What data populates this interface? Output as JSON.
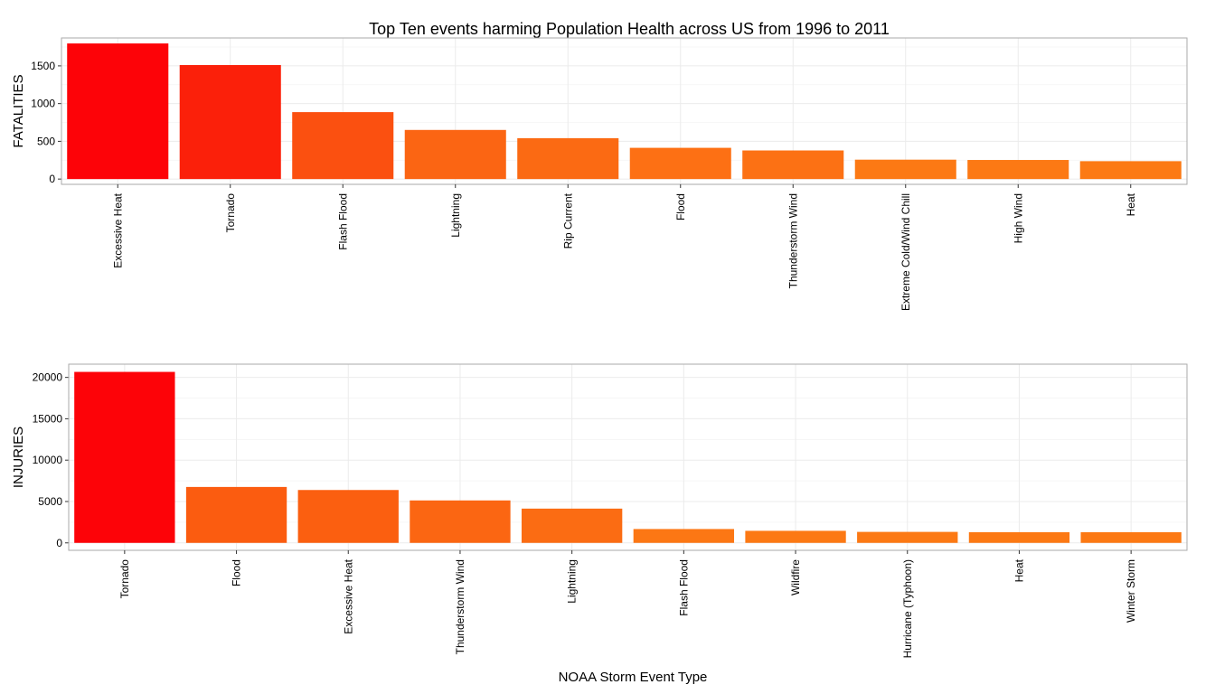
{
  "chart_data": {
    "title": "Top Ten events harming Population Health across US from 1996 to 2011",
    "xlabel": "NOAA Storm Event Type",
    "panels": [
      {
        "type": "bar",
        "ylabel": "FATALITIES",
        "categories": [
          "Excessive Heat",
          "Tornado",
          "Flash Flood",
          "Lightning",
          "Rip Current",
          "Flood",
          "Thunderstorm Wind",
          "Extreme Cold/Wind Chill",
          "High Wind",
          "Heat"
        ],
        "values": [
          1797,
          1511,
          887,
          651,
          542,
          414,
          379,
          257,
          253,
          237
        ],
        "ylim": [
          -70,
          1870
        ],
        "yticks": [
          0,
          500,
          1000,
          1500
        ],
        "grid": true,
        "colors": [
          "#fd0308",
          "#fb200a",
          "#fb5010",
          "#fb6513",
          "#fb6a13",
          "#fd7014",
          "#fc7114",
          "#fc7914",
          "#fc7914",
          "#fc7a14"
        ]
      },
      {
        "type": "bar",
        "ylabel": "INJURIES",
        "categories": [
          "Tornado",
          "Flood",
          "Excessive Heat",
          "Thunderstorm Wind",
          "Lightning",
          "Flash Flood",
          "Wildfire",
          "Hurricane (Typhoon)",
          "Heat",
          "Winter Storm"
        ],
        "values": [
          20667,
          6758,
          6391,
          5130,
          4141,
          1674,
          1456,
          1328,
          1292,
          1292
        ],
        "ylim": [
          -900,
          21600
        ],
        "yticks": [
          0,
          5000,
          10000,
          15000,
          20000
        ],
        "grid": true,
        "colors": [
          "#fd0308",
          "#fb5c10",
          "#fb5f10",
          "#fb6612",
          "#fb6c13",
          "#fc7714",
          "#fc7914",
          "#fc7914",
          "#fc7914",
          "#fc7914"
        ]
      }
    ]
  }
}
